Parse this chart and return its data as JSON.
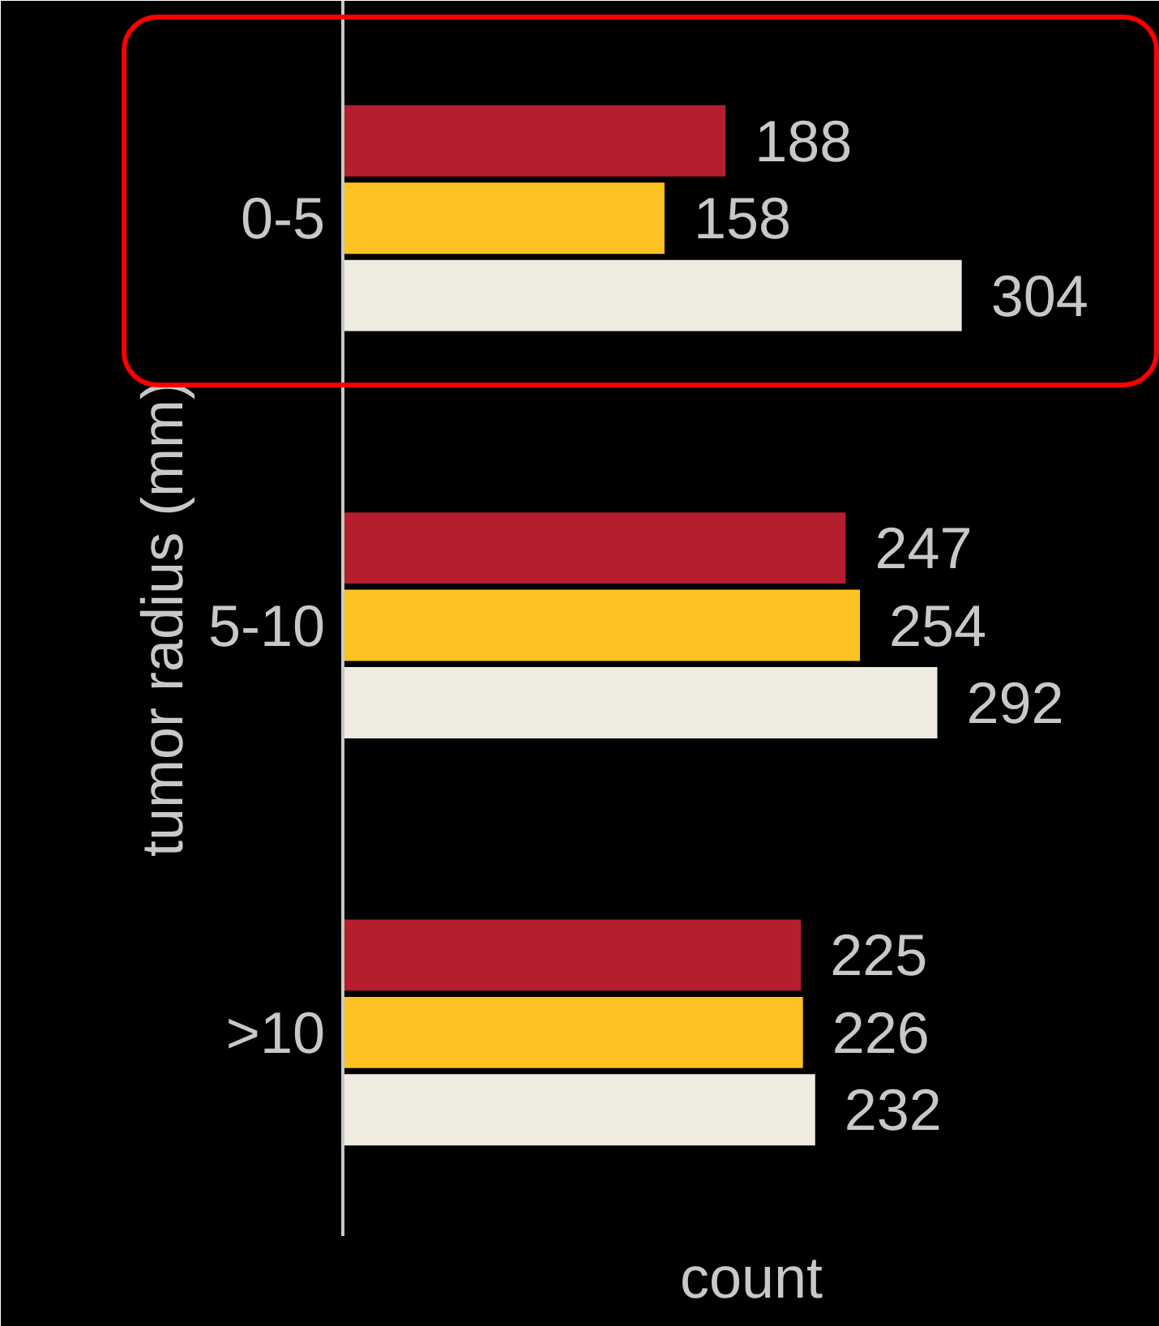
{
  "chart_data": {
    "type": "bar",
    "orientation": "horizontal",
    "categories": [
      "0-5",
      "5-10",
      ">10"
    ],
    "series": [
      {
        "color": "#b41e2d",
        "values": [
          188,
          247,
          225
        ]
      },
      {
        "color": "#fdc122",
        "values": [
          158,
          254,
          226
        ]
      },
      {
        "color": "#f0ebe0",
        "values": [
          304,
          292,
          232
        ]
      }
    ],
    "xlabel": "count",
    "ylabel": "tumor radius (mm)",
    "data_labels": true,
    "tick_labels": "y",
    "grid": false
  }
}
